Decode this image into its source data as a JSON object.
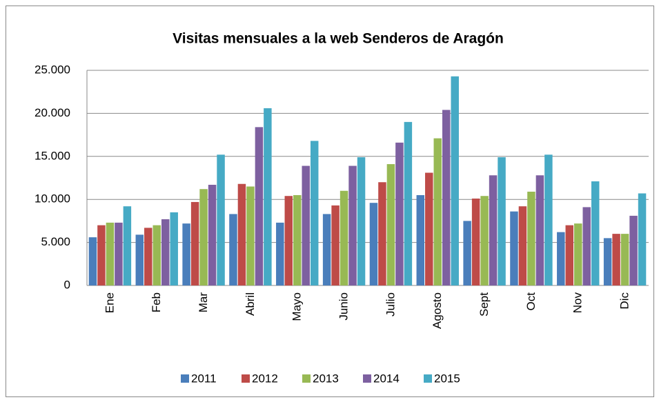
{
  "chart_data": {
    "type": "bar",
    "title": "Visitas mensuales a la web Senderos de Aragón",
    "categories": [
      "Ene",
      "Feb",
      "Mar",
      "Abril",
      "Mayo",
      "Junio",
      "Julio",
      "Agosto",
      "Sept",
      "Oct",
      "Nov",
      "Dic"
    ],
    "series": [
      {
        "name": "2011",
        "color": "#4a7ebb",
        "values": [
          5600,
          5900,
          7200,
          8300,
          7300,
          8300,
          9600,
          10500,
          7500,
          8600,
          6200,
          5500
        ]
      },
      {
        "name": "2012",
        "color": "#be4b48",
        "values": [
          7000,
          6700,
          9700,
          11800,
          10400,
          9300,
          12000,
          13100,
          10100,
          9200,
          7000,
          6000
        ]
      },
      {
        "name": "2013",
        "color": "#98b954",
        "values": [
          7300,
          7000,
          11200,
          11500,
          10500,
          11000,
          14100,
          17100,
          10400,
          10900,
          7200,
          6000
        ]
      },
      {
        "name": "2014",
        "color": "#7d60a0",
        "values": [
          7300,
          7700,
          11700,
          18400,
          13900,
          13900,
          16600,
          20400,
          12800,
          12800,
          9100,
          8100
        ]
      },
      {
        "name": "2015",
        "color": "#46aac5",
        "values": [
          9200,
          8500,
          15200,
          20600,
          16800,
          14900,
          19000,
          24300,
          14900,
          15200,
          12100,
          10700
        ]
      }
    ],
    "ylim": [
      0,
      25000
    ],
    "yticks": [
      0,
      {
        "value": 5000,
        "label": "5.000"
      },
      {
        "value": 10000,
        "label": "10.000"
      },
      {
        "value": 15000,
        "label": "15.000"
      },
      {
        "value": 20000,
        "label": "20.000"
      },
      {
        "value": 25000,
        "label": "25.000"
      }
    ],
    "grid": true,
    "legend": "bottom"
  }
}
